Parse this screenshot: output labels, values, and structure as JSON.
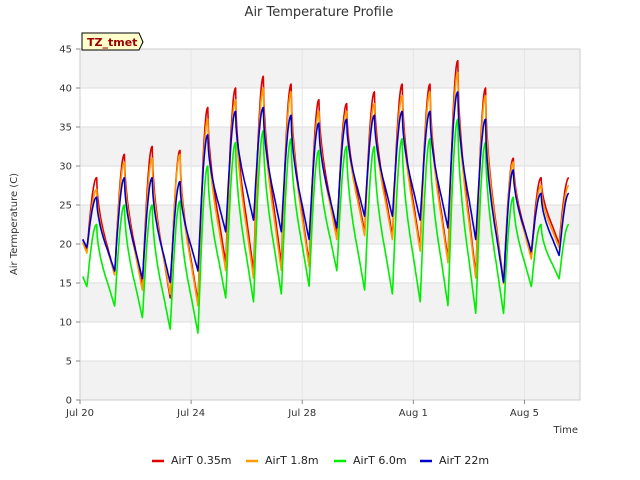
{
  "chart_data": {
    "type": "line",
    "title": "Air Temperature Profile",
    "xlabel": "Time",
    "ylabel": "Air Termperature (C)",
    "badge": "TZ_tmet",
    "ylim": [
      0,
      45
    ],
    "yticks": [
      0,
      5,
      10,
      15,
      20,
      25,
      30,
      35,
      40,
      45
    ],
    "xlim": [
      "2024-07-20",
      "2024-08-07"
    ],
    "xticks": [
      {
        "date": "2024-07-20",
        "label": "Jul 20"
      },
      {
        "date": "2024-07-24",
        "label": "Jul 24"
      },
      {
        "date": "2024-07-28",
        "label": "Jul 28"
      },
      {
        "date": "2024-08-01",
        "label": "Aug 1"
      },
      {
        "date": "2024-08-05",
        "label": "Aug 5"
      }
    ],
    "grid": true,
    "legend_position": "bottom",
    "days": [
      "Jul 20",
      "Jul 21",
      "Jul 22",
      "Jul 23",
      "Jul 24",
      "Jul 25",
      "Jul 26",
      "Jul 27",
      "Jul 28",
      "Jul 29",
      "Jul 30",
      "Jul 31",
      "Aug 1",
      "Aug 2",
      "Aug 3",
      "Aug 4",
      "Aug 5",
      "Aug 6"
    ],
    "series": [
      {
        "name": "AirT 0.35m",
        "color": "#dd0000",
        "daily_max": [
          28.5,
          31.5,
          32.5,
          32.0,
          37.5,
          40.0,
          41.5,
          40.5,
          38.5,
          38.0,
          39.5,
          40.5,
          40.5,
          43.5,
          40.0,
          31.0,
          28.5,
          28.5
        ],
        "daily_min": [
          19.0,
          16.0,
          14.5,
          13.0,
          12.5,
          17.5,
          16.5,
          17.5,
          17.5,
          21.0,
          21.5,
          21.0,
          19.5,
          18.0,
          16.0,
          15.0,
          18.5,
          20.0
        ]
      },
      {
        "name": "AirT 1.8m",
        "color": "#ff9900",
        "daily_max": [
          27.0,
          30.5,
          31.0,
          31.5,
          36.0,
          38.5,
          40.0,
          39.5,
          37.0,
          37.0,
          38.0,
          39.0,
          39.5,
          42.0,
          39.0,
          30.5,
          27.5,
          27.5
        ],
        "daily_min": [
          18.8,
          16.0,
          14.0,
          13.5,
          12.0,
          16.5,
          15.5,
          16.5,
          17.0,
          20.5,
          21.0,
          20.5,
          19.0,
          17.5,
          15.5,
          14.8,
          18.0,
          19.5
        ]
      },
      {
        "name": "AirT 6.0m",
        "color": "#00ee00",
        "daily_max": [
          22.5,
          25.0,
          25.0,
          25.5,
          30.0,
          33.0,
          34.5,
          33.5,
          32.0,
          32.5,
          32.5,
          33.5,
          33.5,
          36.0,
          33.0,
          26.0,
          22.5,
          22.5
        ],
        "daily_min": [
          14.5,
          12.0,
          10.5,
          9.0,
          8.5,
          13.0,
          12.5,
          13.5,
          14.5,
          16.5,
          14.0,
          13.5,
          12.5,
          12.0,
          11.0,
          11.0,
          14.5,
          15.5
        ]
      },
      {
        "name": "AirT 22m",
        "color": "#0000cc",
        "daily_max": [
          26.0,
          28.5,
          28.5,
          28.0,
          34.0,
          37.0,
          37.5,
          36.5,
          35.5,
          36.0,
          36.5,
          37.0,
          37.0,
          39.5,
          36.0,
          29.5,
          26.5,
          26.5
        ],
        "daily_min": [
          19.5,
          16.5,
          15.5,
          15.0,
          16.5,
          21.5,
          23.0,
          21.5,
          20.5,
          22.0,
          23.5,
          23.5,
          23.0,
          22.0,
          20.5,
          15.0,
          19.0,
          18.5
        ]
      }
    ]
  }
}
